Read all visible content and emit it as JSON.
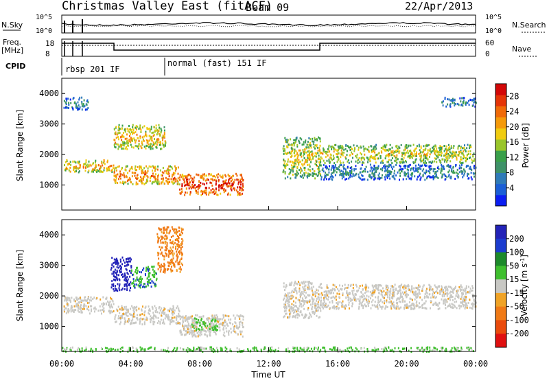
{
  "header": {
    "title": "Christmas Valley East (fitACF)",
    "beam": "Beam 09",
    "date": "22/Apr/2013"
  },
  "labels": {
    "nsky": "N.Sky",
    "nsearch": "N.Search",
    "freq": "Freq.",
    "mhz": "[MHz]",
    "nave": "Nave",
    "cpid": "CPID",
    "cpid_mode1": "rbsp 201 IF",
    "cpid_mode2": "normal (fast) 151 IF",
    "noise_left_ticks": [
      "10^5",
      "10^0"
    ],
    "noise_right_ticks": [
      "10^5",
      "10^0"
    ],
    "freq_left_ticks": [
      "18",
      "8"
    ],
    "freq_right_ticks": [
      "60",
      "0"
    ]
  },
  "chart_data": [
    {
      "type": "heatmap",
      "name": "power",
      "ylabel": "Slant Range [km]",
      "colorbar_label": "Power [dB]",
      "ylim": [
        180,
        4500
      ],
      "yticks": [
        1000,
        2000,
        3000,
        4000
      ],
      "xlim": [
        0,
        24
      ],
      "colorbar": {
        "ticks": [
          "4",
          "8",
          "12",
          "16",
          "20",
          "24",
          "28"
        ],
        "colors": [
          "#0b1ef2",
          "#1b5fd6",
          "#2f7bb8",
          "#3e9268",
          "#3aa04a",
          "#9ac62a",
          "#f0cc10",
          "#f59a0a",
          "#f06a08",
          "#e53407",
          "#d30707"
        ]
      },
      "regions": [
        {
          "t": [
            0.1,
            3.0
          ],
          "r": [
            1450,
            1850
          ],
          "level": 0.7
        },
        {
          "t": [
            3.0,
            6.8
          ],
          "r": [
            1050,
            1650
          ],
          "level": 0.8
        },
        {
          "t": [
            3.0,
            6.0
          ],
          "r": [
            2200,
            3000
          ],
          "level": 0.7
        },
        {
          "t": [
            6.8,
            10.5
          ],
          "r": [
            700,
            1400
          ],
          "level": 0.95
        },
        {
          "t": [
            12.8,
            15.0
          ],
          "r": [
            1250,
            2600
          ],
          "level": 0.6
        },
        {
          "t": [
            15.0,
            24.0
          ],
          "r": [
            1750,
            2350
          ],
          "level": 0.6
        },
        {
          "t": [
            15.0,
            24.0
          ],
          "r": [
            1200,
            1700
          ],
          "level": 0.3
        },
        {
          "t": [
            0.1,
            1.5
          ],
          "r": [
            3500,
            3900
          ],
          "level": 0.3
        },
        {
          "t": [
            22.0,
            24.0
          ],
          "r": [
            3600,
            3900
          ],
          "level": 0.3
        }
      ]
    },
    {
      "type": "heatmap",
      "name": "velocity",
      "ylabel": "Slant Range [km]",
      "colorbar_label": "Velocity [m s^-1]",
      "ylim": [
        180,
        4500
      ],
      "yticks": [
        1000,
        2000,
        3000,
        4000
      ],
      "xlim": [
        0,
        24
      ],
      "xlabel": "Time UT",
      "xticks": [
        "00:00",
        "04:00",
        "08:00",
        "12:00",
        "16:00",
        "20:00",
        "00:00"
      ],
      "colorbar": {
        "ticks": [
          "200",
          "100",
          "50",
          "15",
          "-15",
          "-50",
          "-100",
          "-200"
        ],
        "colors": [
          "#2323b8",
          "#1c3ccf",
          "#1d8a2a",
          "#3fbf2e",
          "#c8c8c4",
          "#f0a326",
          "#f07a16",
          "#ea4b0c",
          "#e01010"
        ]
      },
      "regions": [
        {
          "t": [
            0.1,
            3.0
          ],
          "r": [
            1450,
            2000
          ],
          "v": 0
        },
        {
          "t": [
            3.0,
            6.8
          ],
          "r": [
            1100,
            1700
          ],
          "v": 0
        },
        {
          "t": [
            2.8,
            4.0
          ],
          "r": [
            2200,
            3300
          ],
          "v": 150
        },
        {
          "t": [
            4.0,
            5.5
          ],
          "r": [
            2300,
            3000
          ],
          "v": 60
        },
        {
          "t": [
            5.5,
            7.0
          ],
          "r": [
            2800,
            4300
          ],
          "v": -60
        },
        {
          "t": [
            6.8,
            10.5
          ],
          "r": [
            700,
            1400
          ],
          "v": 0
        },
        {
          "t": [
            7.5,
            9.0
          ],
          "r": [
            900,
            1300
          ],
          "v": 40
        },
        {
          "t": [
            12.8,
            15.0
          ],
          "r": [
            1300,
            2500
          ],
          "v": 0
        },
        {
          "t": [
            15.0,
            24.0
          ],
          "r": [
            1600,
            2400
          ],
          "v": 0
        },
        {
          "t": [
            0,
            24.0
          ],
          "r": [
            200,
            350
          ],
          "v": 40
        }
      ]
    }
  ]
}
